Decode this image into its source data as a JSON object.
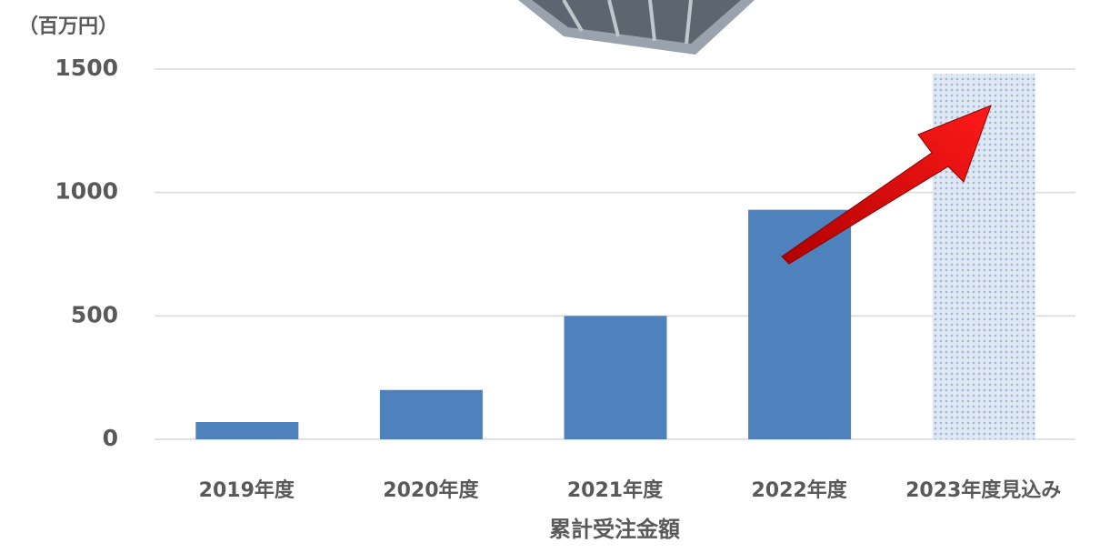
{
  "chart_data": {
    "type": "bar",
    "y_unit_label": "（百万円）",
    "x_axis_title": "累計受注金額",
    "categories": [
      "2019年度",
      "2020年度",
      "2021年度",
      "2022年度",
      "2023年度見込み"
    ],
    "values": [
      70,
      200,
      500,
      930,
      1480
    ],
    "colors": [
      "#4f81bd",
      "#4f81bd",
      "#4f81bd",
      "#4f81bd",
      "#c8d5e8"
    ],
    "ylim": [
      0,
      1500
    ],
    "yticks": [
      0,
      500,
      1000,
      1500
    ],
    "grid": true
  }
}
